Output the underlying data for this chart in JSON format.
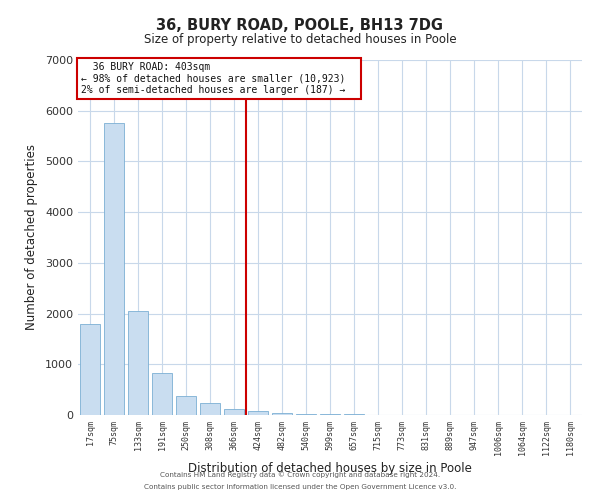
{
  "title": "36, BURY ROAD, POOLE, BH13 7DG",
  "subtitle": "Size of property relative to detached houses in Poole",
  "xlabel": "Distribution of detached houses by size in Poole",
  "ylabel": "Number of detached properties",
  "bar_color": "#c9ddf0",
  "bar_edge_color": "#7bafd4",
  "background_color": "#ffffff",
  "grid_color": "#c8d8ea",
  "vline_color": "#cc0000",
  "vline_x": 6.5,
  "annotation_title": "36 BURY ROAD: 403sqm",
  "annotation_line1": "← 98% of detached houses are smaller (10,923)",
  "annotation_line2": "2% of semi-detached houses are larger (187) →",
  "annotation_box_color": "#ffffff",
  "annotation_box_edge": "#cc0000",
  "ylim": [
    0,
    7000
  ],
  "yticks": [
    0,
    1000,
    2000,
    3000,
    4000,
    5000,
    6000,
    7000
  ],
  "categories": [
    "17sqm",
    "75sqm",
    "133sqm",
    "191sqm",
    "250sqm",
    "308sqm",
    "366sqm",
    "424sqm",
    "482sqm",
    "540sqm",
    "599sqm",
    "657sqm",
    "715sqm",
    "773sqm",
    "831sqm",
    "889sqm",
    "947sqm",
    "1006sqm",
    "1064sqm",
    "1122sqm",
    "1180sqm"
  ],
  "values": [
    1800,
    5750,
    2050,
    820,
    370,
    230,
    120,
    80,
    40,
    18,
    12,
    10,
    8,
    4,
    3,
    2,
    2,
    2,
    2,
    2,
    2
  ],
  "footer_line1": "Contains HM Land Registry data © Crown copyright and database right 2024.",
  "footer_line2": "Contains public sector information licensed under the Open Government Licence v3.0."
}
